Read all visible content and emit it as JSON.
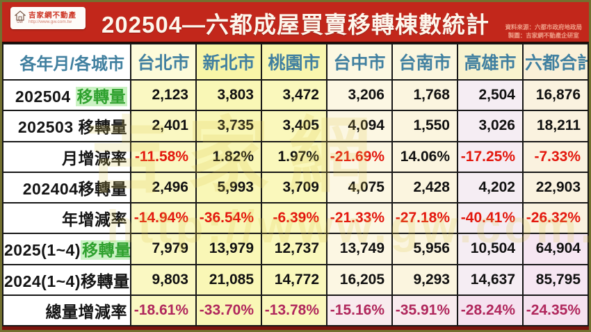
{
  "header": {
    "title": "202504—六都成屋買賣移轉棟數統計",
    "logo": {
      "brand": "吉家網不動產",
      "url": "http://www.gw.com.tw",
      "icon_caption": "GW"
    },
    "source_line1": "資料來源：六都市政府地政局",
    "source_line2": "製圖：吉家網不動產企研室"
  },
  "watermark": {
    "line1": "吉家網",
    "line2": "http://www.gw.com.tw"
  },
  "colors": {
    "header_bar": "#c2271b",
    "title_text": "#fdf6ec",
    "city_header_text": "#4180a0",
    "negative_pct": "#e3170d",
    "total_row_pct": "#b0275c",
    "highlight_green_text": "#2ea12e",
    "highlight_green_bg": "#cbf2c4",
    "column_yellow": "#faf8c2",
    "column_cream": "#fcf7e3",
    "column_pink": "#f5edf3"
  },
  "chart_data": {
    "type": "table",
    "title": "202504—六都成屋買賣移轉棟數統計",
    "columns": [
      "各年月/各城市",
      "台北市",
      "新北市",
      "桃園市",
      "台中市",
      "台南市",
      "高雄市",
      "六都合計"
    ],
    "rows": [
      {
        "kind": "count",
        "label": [
          {
            "t": "202504 ",
            "s": "plain"
          },
          {
            "t": "移轉量",
            "s": "green"
          }
        ],
        "values": [
          "2,123",
          "3,803",
          "3,472",
          "3,206",
          "1,768",
          "2,504",
          "16,876"
        ]
      },
      {
        "kind": "count",
        "label": [
          {
            "t": "202503 移轉量",
            "s": "plain"
          }
        ],
        "values": [
          "2,401",
          "3,735",
          "3,405",
          "4,094",
          "1,550",
          "3,026",
          "18,211"
        ]
      },
      {
        "kind": "pct",
        "label": [
          {
            "t": "月增減率",
            "s": "plain"
          }
        ],
        "values": [
          "-11.58%",
          "1.82%",
          "1.97%",
          "-21.69%",
          "14.06%",
          "-17.25%",
          "-7.33%"
        ]
      },
      {
        "kind": "count",
        "label": [
          {
            "t": "202404移轉量",
            "s": "plain"
          }
        ],
        "values": [
          "2,496",
          "5,993",
          "3,709",
          "4,075",
          "2,428",
          "4,202",
          "22,903"
        ]
      },
      {
        "kind": "pct",
        "label": [
          {
            "t": "年增減率",
            "s": "plain"
          }
        ],
        "values": [
          "-14.94%",
          "-36.54%",
          "-6.39%",
          "-21.33%",
          "-27.18%",
          "-40.41%",
          "-26.32%"
        ]
      },
      {
        "kind": "count",
        "label": [
          {
            "t": "2025(1~4)",
            "s": "plain"
          },
          {
            "t": "移轉量",
            "s": "green"
          }
        ],
        "values": [
          "7,979",
          "13,979",
          "12,737",
          "13,749",
          "5,956",
          "10,504",
          "64,904"
        ]
      },
      {
        "kind": "count",
        "label": [
          {
            "t": "2024(1~4)移轉量",
            "s": "plain"
          }
        ],
        "values": [
          "9,803",
          "21,085",
          "14,772",
          "16,205",
          "9,293",
          "14,637",
          "85,795"
        ]
      },
      {
        "kind": "total_pct",
        "label": [
          {
            "t": "總量增減率",
            "s": "plain"
          }
        ],
        "values": [
          "-18.61%",
          "-33.70%",
          "-13.78%",
          "-15.16%",
          "-35.91%",
          "-28.24%",
          "-24.35%"
        ]
      }
    ]
  }
}
